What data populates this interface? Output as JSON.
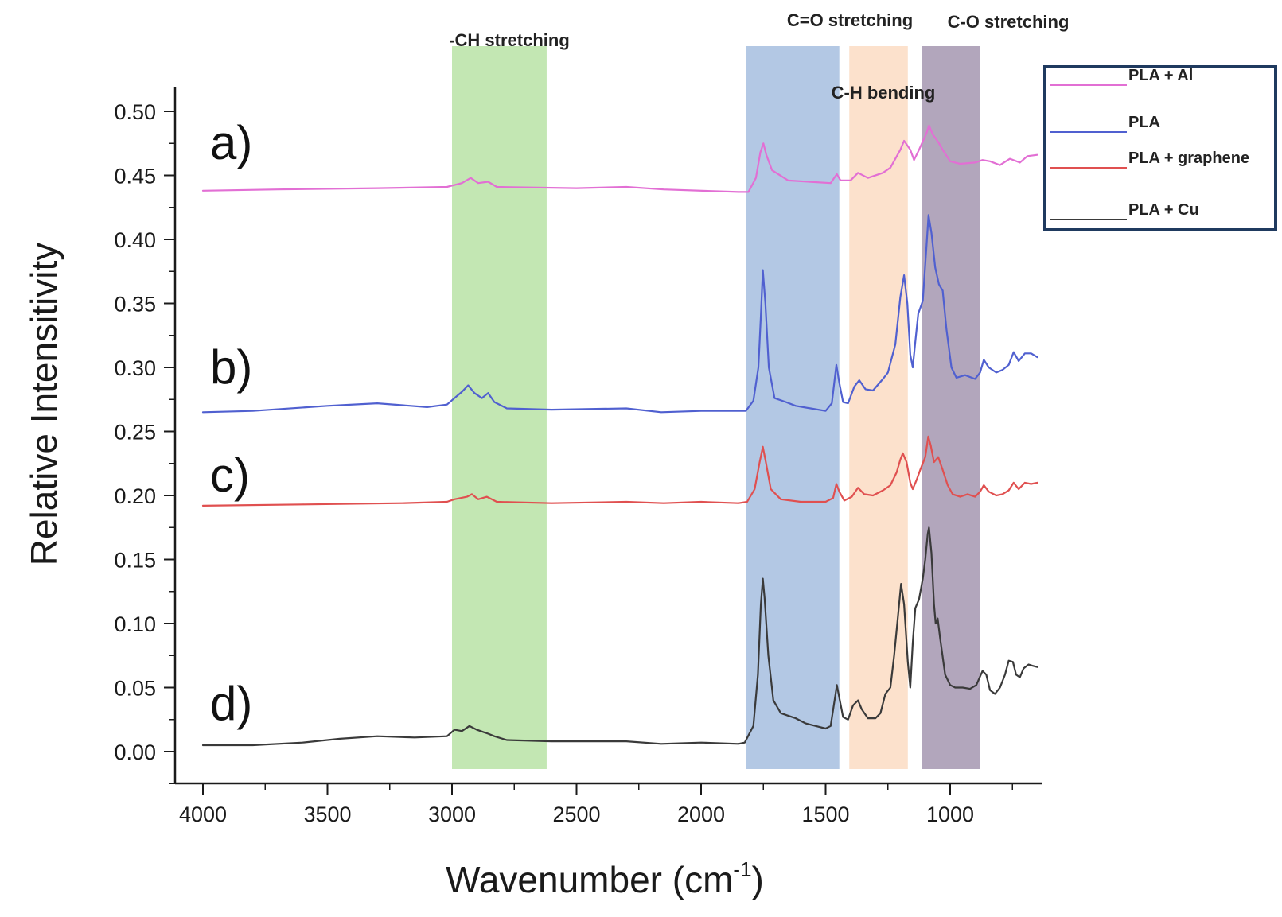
{
  "chart_data": {
    "type": "line",
    "xlabel": "Wavenumber (cm",
    "xlabel_sup": "-1",
    "xlabel_close": ")",
    "ylabel": "Relative Intensitivity",
    "xlim": [
      4000,
      650
    ],
    "x_reversed": true,
    "ylim": [
      -0.025,
      0.5
    ],
    "x_ticks": [
      4000,
      3500,
      3000,
      2500,
      2000,
      1500,
      1000
    ],
    "y_ticks": [
      "0.00",
      "0.05",
      "0.10",
      "0.15",
      "0.20",
      "0.25",
      "0.30",
      "0.35",
      "0.40",
      "0.45",
      "0.50"
    ],
    "grid": false,
    "legend_position": "top-right",
    "bands": [
      {
        "label": "-CH stretching",
        "x0": 3000,
        "x1": 2620,
        "color": "#b9e3a6"
      },
      {
        "label": "C=O stretching",
        "x0": 1820,
        "x1": 1445,
        "color": "#a6bedf"
      },
      {
        "label": "C-H bending",
        "x0": 1405,
        "x1": 1170,
        "color": "#fbdcc3"
      },
      {
        "label": "C-O stretching",
        "x0": 1115,
        "x1": 880,
        "color": "#a596b0"
      }
    ],
    "panel_labels": [
      "a)",
      "b)",
      "c)",
      "d)"
    ],
    "series": [
      {
        "name": "PLA + Al",
        "panel": "a)",
        "color": "#e26fd4",
        "points": [
          [
            4000,
            0.438
          ],
          [
            3700,
            0.439
          ],
          [
            3300,
            0.44
          ],
          [
            3020,
            0.441
          ],
          [
            2960,
            0.444
          ],
          [
            2925,
            0.448
          ],
          [
            2895,
            0.444
          ],
          [
            2855,
            0.445
          ],
          [
            2820,
            0.441
          ],
          [
            2500,
            0.44
          ],
          [
            2300,
            0.441
          ],
          [
            2150,
            0.439
          ],
          [
            1850,
            0.437
          ],
          [
            1810,
            0.437
          ],
          [
            1780,
            0.448
          ],
          [
            1762,
            0.468
          ],
          [
            1750,
            0.475
          ],
          [
            1738,
            0.466
          ],
          [
            1715,
            0.454
          ],
          [
            1650,
            0.446
          ],
          [
            1480,
            0.444
          ],
          [
            1455,
            0.451
          ],
          [
            1440,
            0.446
          ],
          [
            1400,
            0.446
          ],
          [
            1370,
            0.452
          ],
          [
            1330,
            0.448
          ],
          [
            1270,
            0.452
          ],
          [
            1240,
            0.456
          ],
          [
            1200,
            0.47
          ],
          [
            1185,
            0.477
          ],
          [
            1160,
            0.47
          ],
          [
            1145,
            0.462
          ],
          [
            1125,
            0.47
          ],
          [
            1095,
            0.483
          ],
          [
            1085,
            0.489
          ],
          [
            1070,
            0.482
          ],
          [
            1048,
            0.476
          ],
          [
            1030,
            0.47
          ],
          [
            1000,
            0.461
          ],
          [
            960,
            0.459
          ],
          [
            900,
            0.46
          ],
          [
            870,
            0.462
          ],
          [
            840,
            0.461
          ],
          [
            800,
            0.458
          ],
          [
            760,
            0.463
          ],
          [
            720,
            0.46
          ],
          [
            690,
            0.465
          ],
          [
            650,
            0.466
          ]
        ]
      },
      {
        "name": "PLA",
        "panel": "b)",
        "color": "#5060d0",
        "points": [
          [
            4000,
            0.265
          ],
          [
            3800,
            0.266
          ],
          [
            3500,
            0.27
          ],
          [
            3300,
            0.272
          ],
          [
            3100,
            0.269
          ],
          [
            3020,
            0.271
          ],
          [
            2990,
            0.276
          ],
          [
            2960,
            0.281
          ],
          [
            2935,
            0.286
          ],
          [
            2910,
            0.28
          ],
          [
            2880,
            0.276
          ],
          [
            2855,
            0.28
          ],
          [
            2830,
            0.273
          ],
          [
            2780,
            0.268
          ],
          [
            2600,
            0.267
          ],
          [
            2300,
            0.268
          ],
          [
            2160,
            0.265
          ],
          [
            2000,
            0.266
          ],
          [
            1850,
            0.266
          ],
          [
            1820,
            0.266
          ],
          [
            1790,
            0.274
          ],
          [
            1770,
            0.3
          ],
          [
            1760,
            0.34
          ],
          [
            1752,
            0.376
          ],
          [
            1742,
            0.35
          ],
          [
            1728,
            0.3
          ],
          [
            1705,
            0.276
          ],
          [
            1660,
            0.273
          ],
          [
            1620,
            0.27
          ],
          [
            1560,
            0.268
          ],
          [
            1500,
            0.266
          ],
          [
            1475,
            0.272
          ],
          [
            1457,
            0.302
          ],
          [
            1445,
            0.288
          ],
          [
            1430,
            0.273
          ],
          [
            1410,
            0.272
          ],
          [
            1385,
            0.285
          ],
          [
            1365,
            0.29
          ],
          [
            1340,
            0.283
          ],
          [
            1310,
            0.282
          ],
          [
            1270,
            0.291
          ],
          [
            1250,
            0.296
          ],
          [
            1220,
            0.318
          ],
          [
            1200,
            0.355
          ],
          [
            1185,
            0.372
          ],
          [
            1172,
            0.35
          ],
          [
            1160,
            0.31
          ],
          [
            1150,
            0.3
          ],
          [
            1140,
            0.32
          ],
          [
            1128,
            0.342
          ],
          [
            1110,
            0.352
          ],
          [
            1095,
            0.395
          ],
          [
            1087,
            0.419
          ],
          [
            1075,
            0.405
          ],
          [
            1060,
            0.378
          ],
          [
            1045,
            0.365
          ],
          [
            1030,
            0.36
          ],
          [
            1015,
            0.33
          ],
          [
            995,
            0.3
          ],
          [
            975,
            0.292
          ],
          [
            940,
            0.294
          ],
          [
            900,
            0.291
          ],
          [
            880,
            0.296
          ],
          [
            865,
            0.306
          ],
          [
            845,
            0.3
          ],
          [
            815,
            0.296
          ],
          [
            790,
            0.298
          ],
          [
            765,
            0.302
          ],
          [
            745,
            0.312
          ],
          [
            725,
            0.305
          ],
          [
            700,
            0.311
          ],
          [
            675,
            0.311
          ],
          [
            650,
            0.308
          ]
        ]
      },
      {
        "name": "PLA + graphene",
        "panel": "c)",
        "color": "#e05050",
        "points": [
          [
            4000,
            0.192
          ],
          [
            3600,
            0.193
          ],
          [
            3200,
            0.194
          ],
          [
            3020,
            0.195
          ],
          [
            2990,
            0.197
          ],
          [
            2940,
            0.199
          ],
          [
            2920,
            0.201
          ],
          [
            2895,
            0.197
          ],
          [
            2860,
            0.199
          ],
          [
            2820,
            0.195
          ],
          [
            2600,
            0.194
          ],
          [
            2300,
            0.195
          ],
          [
            2150,
            0.194
          ],
          [
            2000,
            0.195
          ],
          [
            1850,
            0.194
          ],
          [
            1815,
            0.195
          ],
          [
            1785,
            0.205
          ],
          [
            1765,
            0.226
          ],
          [
            1752,
            0.238
          ],
          [
            1740,
            0.226
          ],
          [
            1720,
            0.205
          ],
          [
            1680,
            0.197
          ],
          [
            1600,
            0.195
          ],
          [
            1500,
            0.195
          ],
          [
            1470,
            0.198
          ],
          [
            1457,
            0.209
          ],
          [
            1445,
            0.203
          ],
          [
            1425,
            0.196
          ],
          [
            1395,
            0.199
          ],
          [
            1370,
            0.206
          ],
          [
            1345,
            0.201
          ],
          [
            1310,
            0.2
          ],
          [
            1270,
            0.204
          ],
          [
            1240,
            0.208
          ],
          [
            1215,
            0.218
          ],
          [
            1200,
            0.228
          ],
          [
            1190,
            0.233
          ],
          [
            1175,
            0.226
          ],
          [
            1160,
            0.21
          ],
          [
            1150,
            0.205
          ],
          [
            1135,
            0.212
          ],
          [
            1120,
            0.22
          ],
          [
            1100,
            0.23
          ],
          [
            1088,
            0.246
          ],
          [
            1078,
            0.239
          ],
          [
            1065,
            0.226
          ],
          [
            1048,
            0.23
          ],
          [
            1030,
            0.22
          ],
          [
            1010,
            0.208
          ],
          [
            990,
            0.201
          ],
          [
            960,
            0.199
          ],
          [
            930,
            0.201
          ],
          [
            900,
            0.199
          ],
          [
            880,
            0.203
          ],
          [
            865,
            0.208
          ],
          [
            845,
            0.203
          ],
          [
            815,
            0.2
          ],
          [
            790,
            0.201
          ],
          [
            765,
            0.204
          ],
          [
            745,
            0.21
          ],
          [
            725,
            0.205
          ],
          [
            700,
            0.21
          ],
          [
            675,
            0.209
          ],
          [
            650,
            0.21
          ]
        ]
      },
      {
        "name": "PLA + Cu",
        "panel": "d)",
        "color": "#3a3a3a",
        "points": [
          [
            4000,
            0.005
          ],
          [
            3800,
            0.005
          ],
          [
            3600,
            0.007
          ],
          [
            3450,
            0.01
          ],
          [
            3300,
            0.012
          ],
          [
            3150,
            0.011
          ],
          [
            3020,
            0.012
          ],
          [
            2990,
            0.017
          ],
          [
            2960,
            0.016
          ],
          [
            2930,
            0.02
          ],
          [
            2900,
            0.017
          ],
          [
            2870,
            0.015
          ],
          [
            2855,
            0.014
          ],
          [
            2830,
            0.012
          ],
          [
            2780,
            0.009
          ],
          [
            2600,
            0.008
          ],
          [
            2300,
            0.008
          ],
          [
            2160,
            0.006
          ],
          [
            2000,
            0.007
          ],
          [
            1850,
            0.006
          ],
          [
            1825,
            0.007
          ],
          [
            1790,
            0.02
          ],
          [
            1772,
            0.06
          ],
          [
            1760,
            0.115
          ],
          [
            1752,
            0.135
          ],
          [
            1745,
            0.12
          ],
          [
            1730,
            0.075
          ],
          [
            1710,
            0.04
          ],
          [
            1680,
            0.03
          ],
          [
            1650,
            0.028
          ],
          [
            1620,
            0.026
          ],
          [
            1580,
            0.022
          ],
          [
            1540,
            0.02
          ],
          [
            1500,
            0.018
          ],
          [
            1480,
            0.02
          ],
          [
            1460,
            0.045
          ],
          [
            1455,
            0.052
          ],
          [
            1448,
            0.045
          ],
          [
            1430,
            0.027
          ],
          [
            1410,
            0.025
          ],
          [
            1390,
            0.036
          ],
          [
            1370,
            0.04
          ],
          [
            1355,
            0.033
          ],
          [
            1330,
            0.026
          ],
          [
            1300,
            0.026
          ],
          [
            1280,
            0.03
          ],
          [
            1260,
            0.045
          ],
          [
            1240,
            0.05
          ],
          [
            1225,
            0.075
          ],
          [
            1210,
            0.105
          ],
          [
            1197,
            0.131
          ],
          [
            1185,
            0.115
          ],
          [
            1170,
            0.07
          ],
          [
            1160,
            0.05
          ],
          [
            1150,
            0.085
          ],
          [
            1140,
            0.112
          ],
          [
            1125,
            0.119
          ],
          [
            1110,
            0.135
          ],
          [
            1100,
            0.15
          ],
          [
            1090,
            0.17
          ],
          [
            1085,
            0.175
          ],
          [
            1075,
            0.155
          ],
          [
            1065,
            0.115
          ],
          [
            1058,
            0.1
          ],
          [
            1050,
            0.104
          ],
          [
            1040,
            0.088
          ],
          [
            1020,
            0.06
          ],
          [
            1000,
            0.052
          ],
          [
            980,
            0.05
          ],
          [
            950,
            0.05
          ],
          [
            920,
            0.049
          ],
          [
            895,
            0.052
          ],
          [
            870,
            0.063
          ],
          [
            855,
            0.06
          ],
          [
            840,
            0.048
          ],
          [
            820,
            0.045
          ],
          [
            800,
            0.05
          ],
          [
            780,
            0.06
          ],
          [
            765,
            0.071
          ],
          [
            748,
            0.07
          ],
          [
            735,
            0.06
          ],
          [
            720,
            0.058
          ],
          [
            705,
            0.065
          ],
          [
            685,
            0.068
          ],
          [
            670,
            0.067
          ],
          [
            650,
            0.066
          ]
        ]
      }
    ]
  }
}
